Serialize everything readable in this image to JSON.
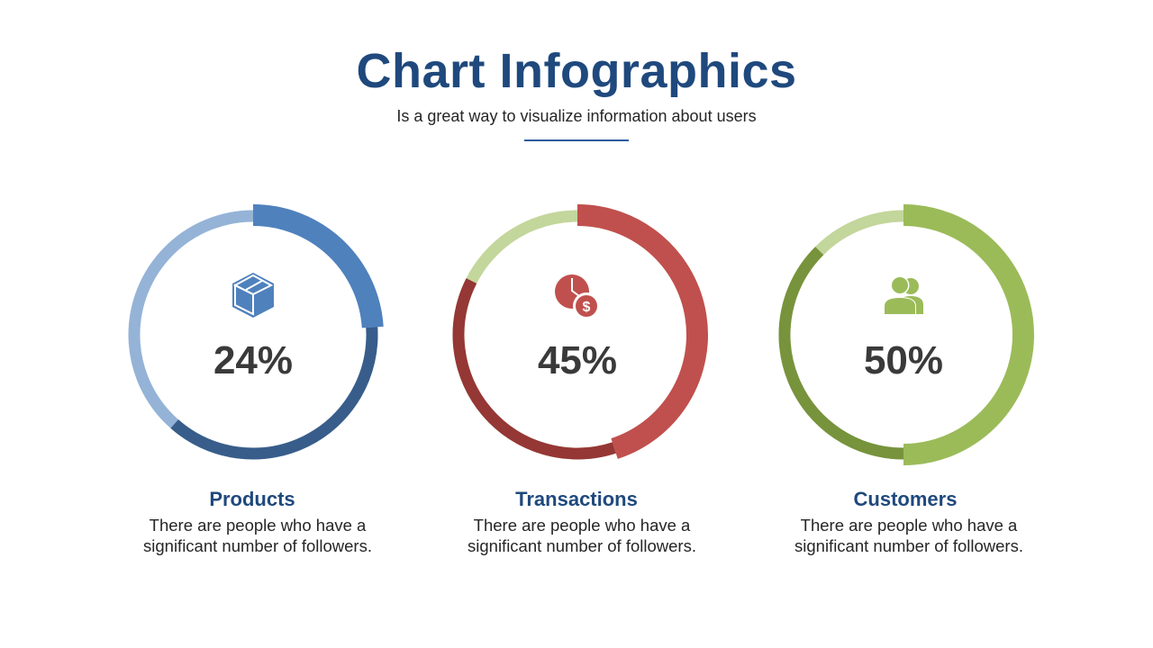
{
  "header": {
    "title": "Chart Infographics",
    "subtitle": "Is a great way to visualize information about users"
  },
  "chart_data": [
    {
      "type": "pie",
      "name": "Products",
      "value_label": "24%",
      "percent": 24,
      "icon": "box-icon",
      "colors": {
        "accent": "#4f81bd",
        "dark": "#385d8a",
        "light": "#95b3d7"
      }
    },
    {
      "type": "pie",
      "name": "Transactions",
      "value_label": "45%",
      "percent": 45,
      "icon": "clock-dollar-icon",
      "colors": {
        "accent": "#c0504d",
        "dark": "#953735",
        "light": "#c3d69b"
      }
    },
    {
      "type": "pie",
      "name": "Customers",
      "value_label": "50%",
      "percent": 50,
      "icon": "users-icon",
      "colors": {
        "accent": "#9bbb59",
        "dark": "#77933c",
        "light": "#c3d69b"
      }
    }
  ],
  "cards": [
    {
      "title": "Products",
      "description": "There are people who have a significant number of followers."
    },
    {
      "title": "Transactions",
      "description": "There are people who have a significant number of followers."
    },
    {
      "title": "Customers",
      "description": "There are people who have a significant number of followers."
    }
  ]
}
